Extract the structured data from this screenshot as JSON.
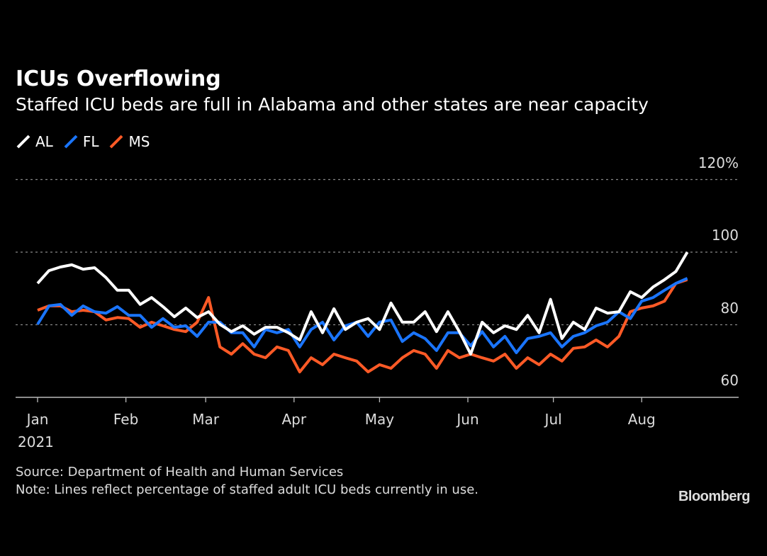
{
  "chart_data": {
    "type": "line",
    "title": "ICUs Overflowing",
    "subtitle": "Staffed ICU beds are full in Alabama and other states are near capacity",
    "ylim": [
      60,
      120
    ],
    "yticks": [
      {
        "value": 120,
        "label": "120%"
      },
      {
        "value": 100,
        "label": "100"
      },
      {
        "value": 80,
        "label": "80"
      },
      {
        "value": 60,
        "label": "60"
      }
    ],
    "xticks": [
      {
        "date": "2021-01-01",
        "label": "Jan"
      },
      {
        "date": "2021-02-01",
        "label": "Feb"
      },
      {
        "date": "2021-03-01",
        "label": "Mar"
      },
      {
        "date": "2021-04-01",
        "label": "Apr"
      },
      {
        "date": "2021-05-01",
        "label": "May"
      },
      {
        "date": "2021-06-01",
        "label": "Jun"
      },
      {
        "date": "2021-07-01",
        "label": "Jul"
      },
      {
        "date": "2021-08-01",
        "label": "Aug"
      }
    ],
    "year_label": "2021",
    "grid": "horizontal dotted",
    "legend_position": "top-left",
    "x": [
      "2021-01-01",
      "2021-01-05",
      "2021-01-09",
      "2021-01-13",
      "2021-01-17",
      "2021-01-21",
      "2021-01-25",
      "2021-01-29",
      "2021-02-02",
      "2021-02-06",
      "2021-02-10",
      "2021-02-14",
      "2021-02-18",
      "2021-02-22",
      "2021-02-26",
      "2021-03-02",
      "2021-03-06",
      "2021-03-10",
      "2021-03-14",
      "2021-03-18",
      "2021-03-22",
      "2021-03-26",
      "2021-03-30",
      "2021-04-03",
      "2021-04-07",
      "2021-04-11",
      "2021-04-15",
      "2021-04-19",
      "2021-04-23",
      "2021-04-27",
      "2021-05-01",
      "2021-05-05",
      "2021-05-09",
      "2021-05-13",
      "2021-05-17",
      "2021-05-21",
      "2021-05-25",
      "2021-05-29",
      "2021-06-02",
      "2021-06-06",
      "2021-06-10",
      "2021-06-14",
      "2021-06-18",
      "2021-06-22",
      "2021-06-26",
      "2021-06-30",
      "2021-07-04",
      "2021-07-08",
      "2021-07-12",
      "2021-07-16",
      "2021-07-20",
      "2021-07-24",
      "2021-07-28",
      "2021-08-01",
      "2021-08-05",
      "2021-08-09",
      "2021-08-13",
      "2021-08-17"
    ],
    "series": [
      {
        "name": "AL",
        "color": "#ffffff",
        "values": [
          91.4,
          94.9,
          95.9,
          96.5,
          95.3,
          95.7,
          93.0,
          89.5,
          89.5,
          85.6,
          87.5,
          85.0,
          82.2,
          84.6,
          82.0,
          83.6,
          80.1,
          78.1,
          79.7,
          77.4,
          79.3,
          79.3,
          77.8,
          75.8,
          83.6,
          77.8,
          84.4,
          78.7,
          80.7,
          81.7,
          78.7,
          86.0,
          80.7,
          80.7,
          83.6,
          78.1,
          83.6,
          78.1,
          71.9,
          80.7,
          77.8,
          79.7,
          78.7,
          82.6,
          77.8,
          87.0,
          76.2,
          80.7,
          78.7,
          84.6,
          83.2,
          83.6,
          89.1,
          87.5,
          90.4,
          92.4,
          94.7,
          100.0
        ]
      },
      {
        "name": "FL",
        "color": "#1a75ff",
        "values": [
          80.1,
          85.2,
          85.6,
          82.6,
          85.2,
          83.6,
          83.2,
          85.0,
          82.6,
          82.6,
          79.3,
          81.7,
          79.3,
          79.7,
          76.8,
          80.7,
          80.7,
          77.8,
          77.8,
          73.9,
          78.7,
          77.8,
          78.7,
          73.9,
          78.7,
          80.7,
          75.8,
          79.7,
          80.7,
          76.8,
          80.7,
          81.3,
          75.4,
          77.8,
          76.2,
          72.9,
          77.8,
          77.8,
          74.2,
          78.1,
          73.9,
          76.8,
          72.3,
          76.2,
          76.8,
          77.8,
          73.9,
          76.8,
          77.8,
          79.7,
          80.7,
          83.6,
          81.7,
          86.5,
          87.5,
          89.5,
          91.4,
          92.8
        ]
      },
      {
        "name": "MS",
        "color": "#ff5a26",
        "values": [
          84.0,
          85.2,
          85.2,
          83.6,
          84.0,
          83.6,
          81.3,
          82.0,
          81.7,
          79.3,
          80.7,
          79.7,
          78.7,
          78.1,
          80.7,
          87.5,
          73.9,
          71.9,
          74.8,
          71.9,
          70.9,
          73.9,
          72.9,
          67.0,
          70.9,
          69.0,
          71.9,
          70.9,
          70.0,
          67.0,
          69.0,
          68.0,
          70.9,
          72.9,
          71.9,
          68.0,
          72.9,
          70.9,
          71.9,
          70.9,
          70.0,
          71.9,
          68.0,
          70.9,
          69.0,
          71.9,
          70.0,
          73.5,
          73.9,
          75.8,
          73.9,
          76.8,
          83.6,
          84.6,
          85.2,
          86.5,
          91.4,
          92.4
        ]
      }
    ],
    "source": "Source: Department of Health and Human Services",
    "note": "Note: Lines reflect percentage of staffed adult ICU beds currently in use.",
    "logo": "Bloomberg"
  }
}
